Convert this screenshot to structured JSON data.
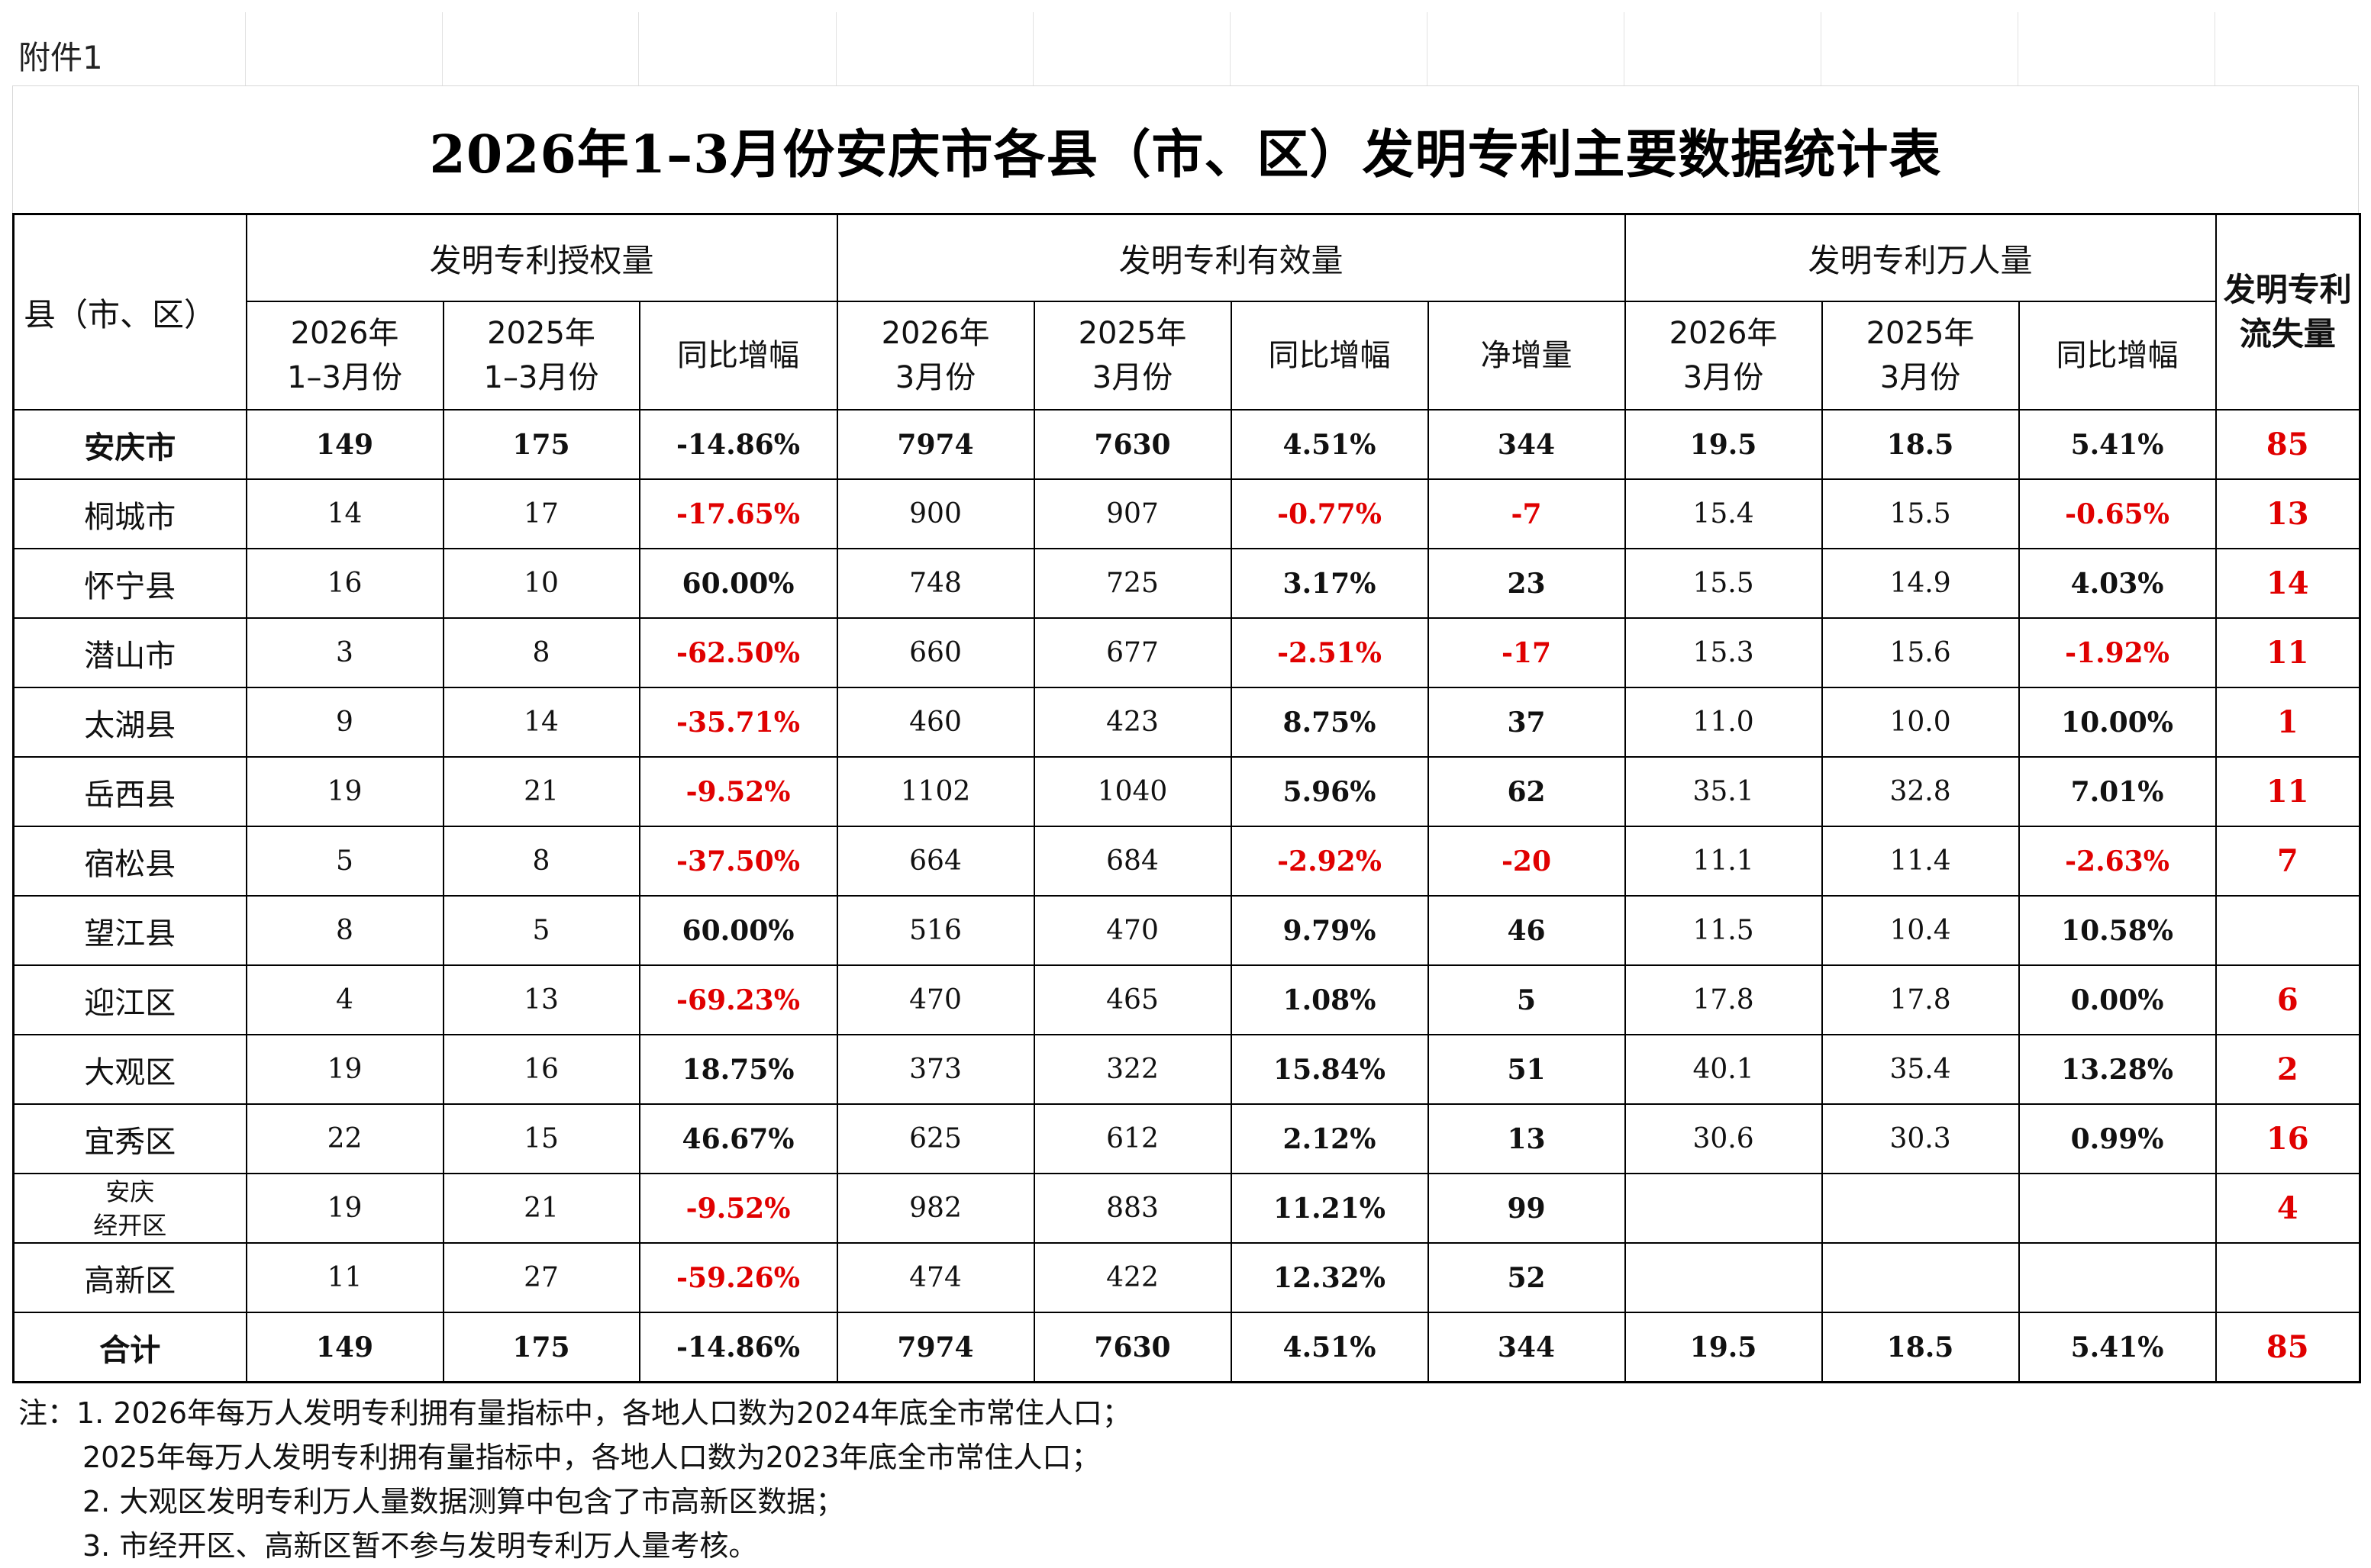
{
  "attachment_label": "附件1",
  "title": "2026年1–3月份安庆市各县（市、区）发明专利主要数据统计表",
  "headers": {
    "county": "县（市、区）",
    "groups": [
      "发明专利授权量",
      "发明专利有效量",
      "发明专利万人量"
    ],
    "outflow": "发明专利\n流失量",
    "sub": [
      "2026年\n1–3月份",
      "2025年\n1–3月份",
      "同比增幅",
      "2026年\n3月份",
      "2025年\n3月份",
      "同比增幅",
      "净增量",
      "2026年\n3月份",
      "2025年\n3月份",
      "同比增幅"
    ]
  },
  "rows": [
    {
      "name": "安庆市",
      "cells": [
        "149",
        "175",
        "-14.86%",
        "7974",
        "7630",
        "4.51%",
        "344",
        "19.5",
        "18.5",
        "5.41%",
        "85"
      ]
    },
    {
      "name": "桐城市",
      "cells": [
        "14",
        "17",
        "-17.65%",
        "900",
        "907",
        "-0.77%",
        "-7",
        "15.4",
        "15.5",
        "-0.65%",
        "13"
      ]
    },
    {
      "name": "怀宁县",
      "cells": [
        "16",
        "10",
        "60.00%",
        "748",
        "725",
        "3.17%",
        "23",
        "15.5",
        "14.9",
        "4.03%",
        "14"
      ]
    },
    {
      "name": "潜山市",
      "cells": [
        "3",
        "8",
        "-62.50%",
        "660",
        "677",
        "-2.51%",
        "-17",
        "15.3",
        "15.6",
        "-1.92%",
        "11"
      ]
    },
    {
      "name": "太湖县",
      "cells": [
        "9",
        "14",
        "-35.71%",
        "460",
        "423",
        "8.75%",
        "37",
        "11.0",
        "10.0",
        "10.00%",
        "1"
      ]
    },
    {
      "name": "岳西县",
      "cells": [
        "19",
        "21",
        "-9.52%",
        "1102",
        "1040",
        "5.96%",
        "62",
        "35.1",
        "32.8",
        "7.01%",
        "11"
      ]
    },
    {
      "name": "宿松县",
      "cells": [
        "5",
        "8",
        "-37.50%",
        "664",
        "684",
        "-2.92%",
        "-20",
        "11.1",
        "11.4",
        "-2.63%",
        "7"
      ]
    },
    {
      "name": "望江县",
      "cells": [
        "8",
        "5",
        "60.00%",
        "516",
        "470",
        "9.79%",
        "46",
        "11.5",
        "10.4",
        "10.58%",
        ""
      ]
    },
    {
      "name": "迎江区",
      "cells": [
        "4",
        "13",
        "-69.23%",
        "470",
        "465",
        "1.08%",
        "5",
        "17.8",
        "17.8",
        "0.00%",
        "6"
      ]
    },
    {
      "name": "大观区",
      "cells": [
        "19",
        "16",
        "18.75%",
        "373",
        "322",
        "15.84%",
        "51",
        "40.1",
        "35.4",
        "13.28%",
        "2"
      ]
    },
    {
      "name": "宜秀区",
      "cells": [
        "22",
        "15",
        "46.67%",
        "625",
        "612",
        "2.12%",
        "13",
        "30.6",
        "30.3",
        "0.99%",
        "16"
      ]
    },
    {
      "name": "安庆\n经开区",
      "cells": [
        "19",
        "21",
        "-9.52%",
        "982",
        "883",
        "11.21%",
        "99",
        "",
        "",
        "",
        "4"
      ]
    },
    {
      "name": "高新区",
      "cells": [
        "11",
        "27",
        "-59.26%",
        "474",
        "422",
        "12.32%",
        "52",
        "",
        "",
        "",
        ""
      ]
    },
    {
      "name": "合计",
      "cells": [
        "149",
        "175",
        "-14.86%",
        "7974",
        "7630",
        "4.51%",
        "344",
        "19.5",
        "18.5",
        "5.41%",
        "85"
      ]
    }
  ],
  "notes": [
    "注：1. 2026年每万人发明专利拥有量指标中，各地人口数为2024年底全市常住人口；",
    "2025年每万人发明专利拥有量指标中，各地人口数为2023年底全市常住人口；",
    "2. 大观区发明专利万人量数据测算中包含了市高新区数据；",
    "3. 市经开区、高新区暂不参与发明专利万人量考核。"
  ],
  "colors": {
    "negative": "#e00000",
    "outflow": "#e00000",
    "border": "#000000"
  }
}
